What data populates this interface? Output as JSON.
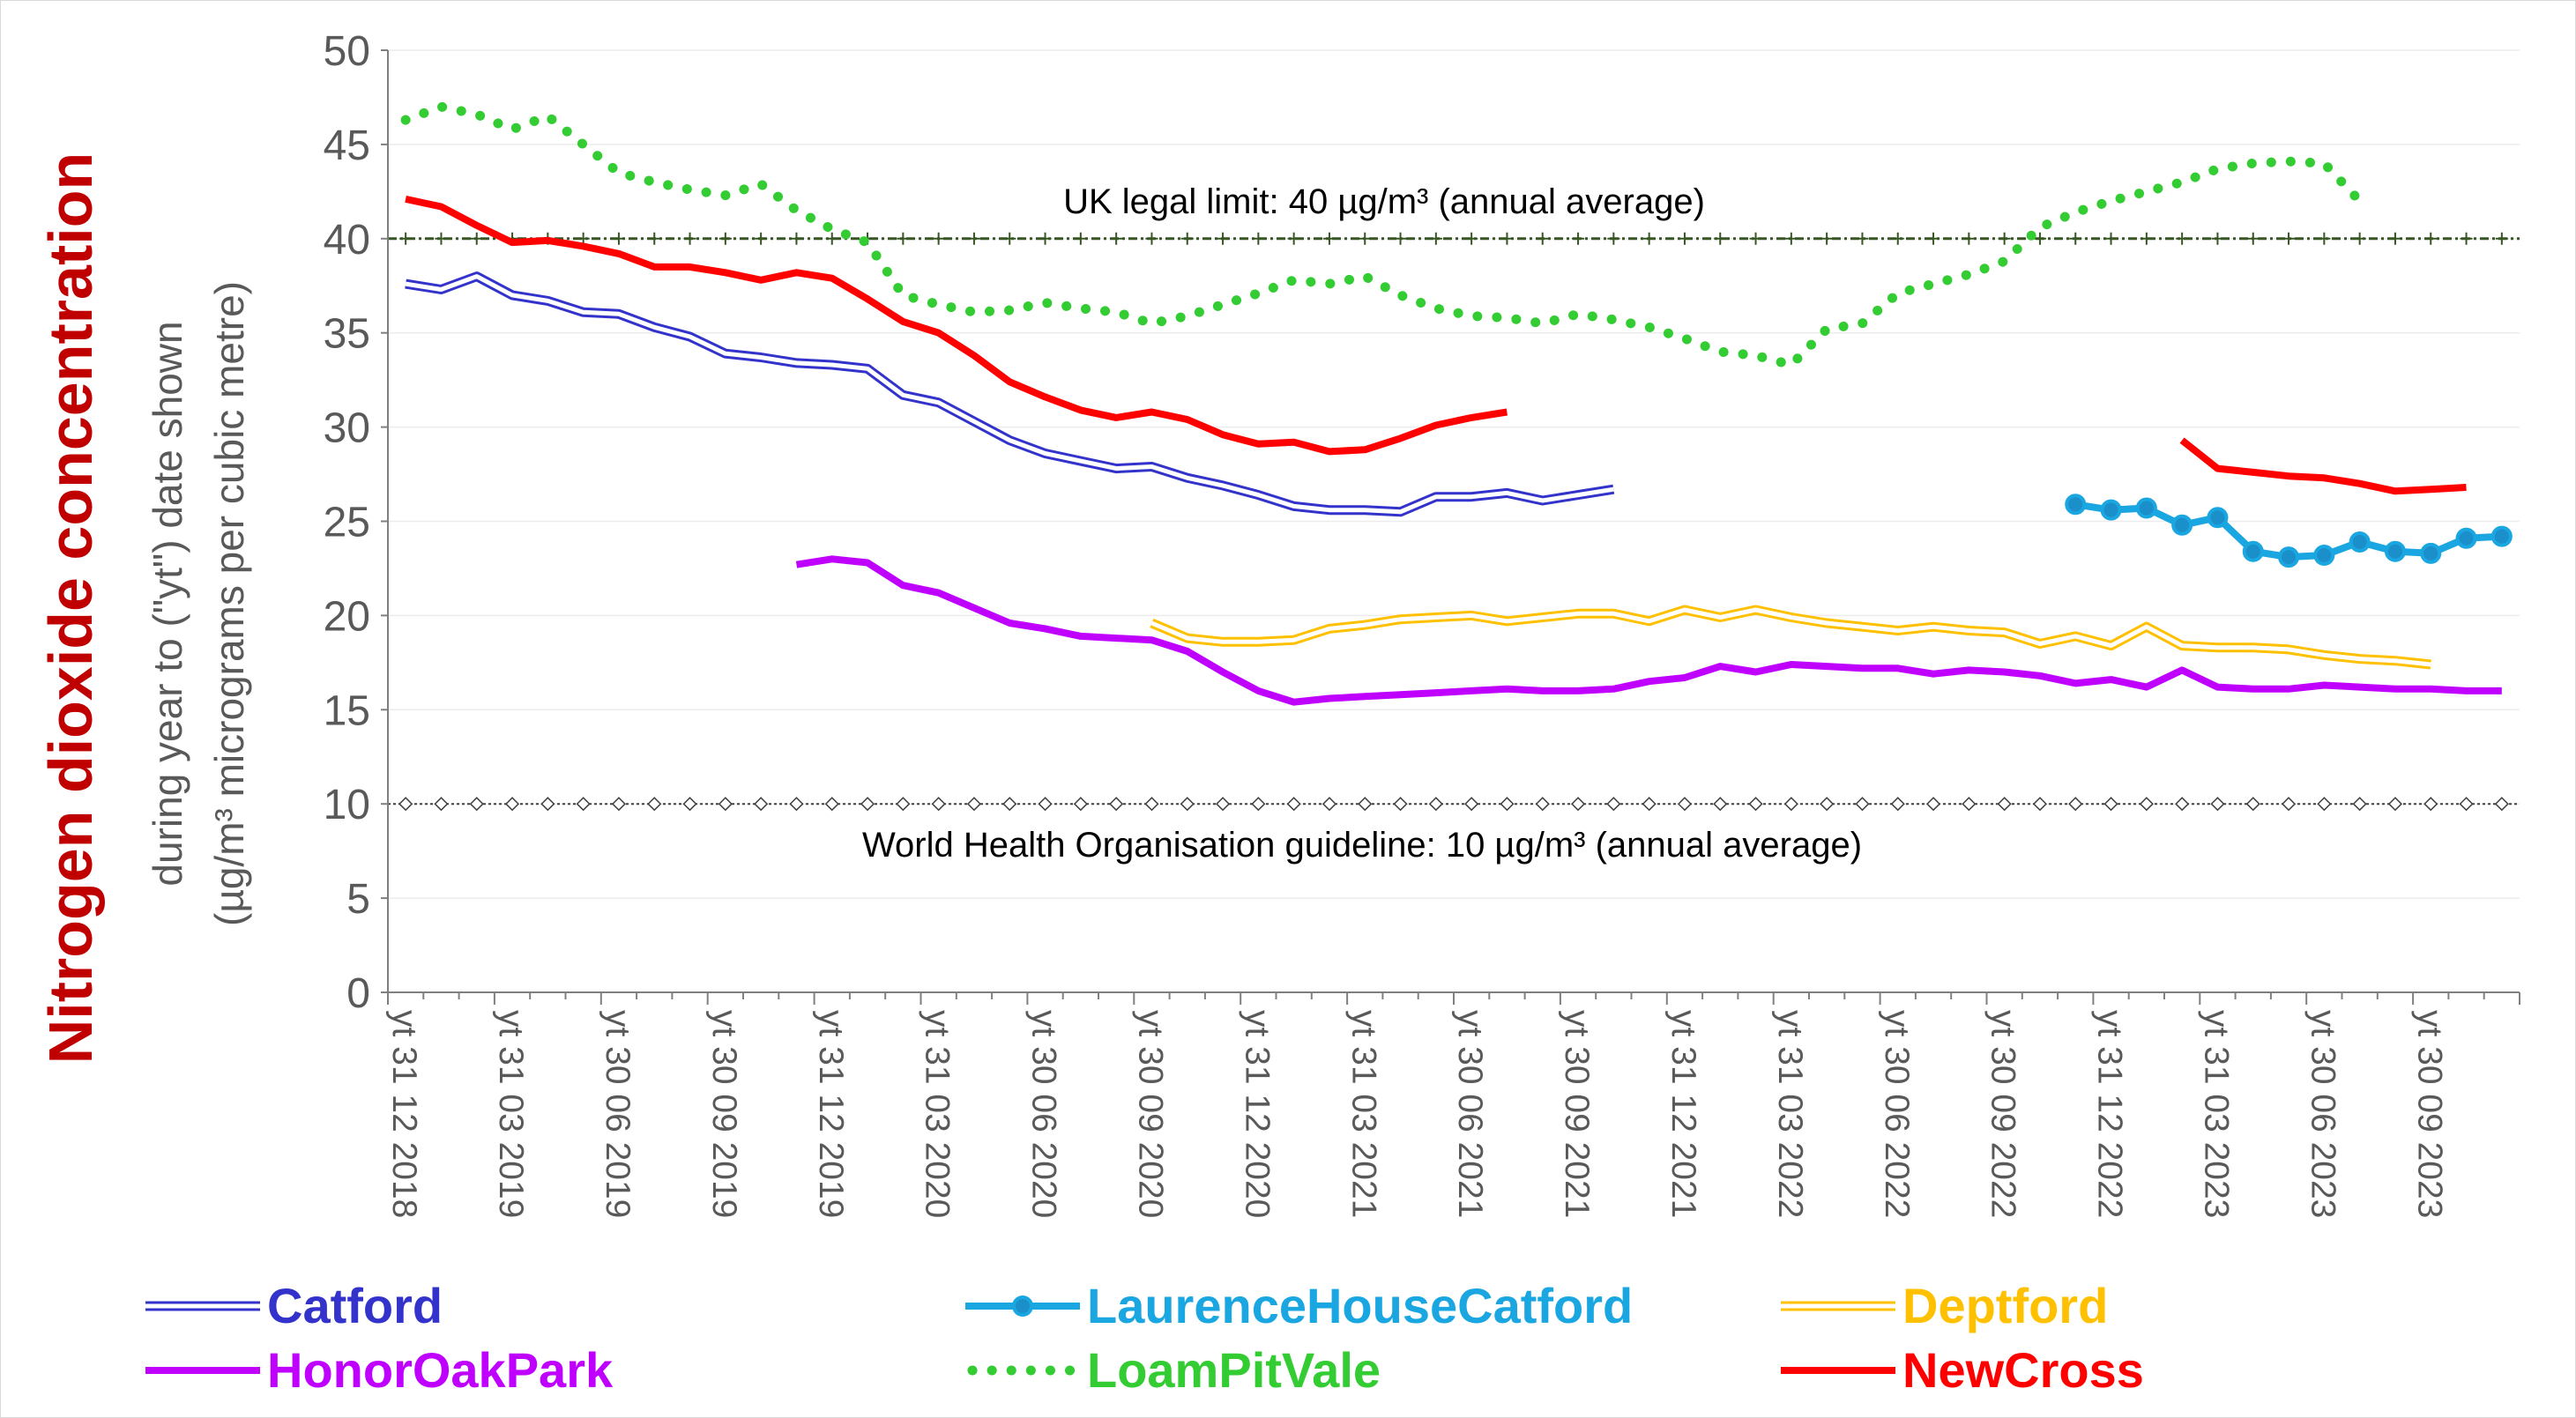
{
  "chart_data": {
    "type": "line",
    "ylabel_main": "Nitrogen dioxide concentration",
    "ylabel_sub1": "during year to (\"yt\") date shown",
    "ylabel_sub2": "(µg/m³ micrograms per cubic metre)",
    "ylim": [
      0,
      50
    ],
    "yticks": [
      0,
      5,
      10,
      15,
      20,
      25,
      30,
      35,
      40,
      45,
      50
    ],
    "grid": true,
    "legend_position": "bottom",
    "x_tick_labels": [
      "yt 31 12 2018",
      "yt 31 03 2019",
      "yt 30 06 2019",
      "yt 30 09 2019",
      "yt 31 12 2019",
      "yt 31 03 2020",
      "yt 30 06 2020",
      "yt 30 09 2020",
      "yt 31 12 2020",
      "yt 31 03 2021",
      "yt 30 06 2021",
      "yt 30 09 2021",
      "yt 31 12 2021",
      "yt 31 03 2022",
      "yt 30 06 2022",
      "yt 30 09 2022",
      "yt 31 12 2022",
      "yt 31 03 2023",
      "yt 30 06 2023",
      "yt 30 09 2023"
    ],
    "x_months": [
      "2018-12",
      "2019-01",
      "2019-02",
      "2019-03",
      "2019-04",
      "2019-05",
      "2019-06",
      "2019-07",
      "2019-08",
      "2019-09",
      "2019-10",
      "2019-11",
      "2019-12",
      "2020-01",
      "2020-02",
      "2020-03",
      "2020-04",
      "2020-05",
      "2020-06",
      "2020-07",
      "2020-08",
      "2020-09",
      "2020-10",
      "2020-11",
      "2020-12",
      "2021-01",
      "2021-02",
      "2021-03",
      "2021-04",
      "2021-05",
      "2021-06",
      "2021-07",
      "2021-08",
      "2021-09",
      "2021-10",
      "2021-11",
      "2021-12",
      "2022-01",
      "2022-02",
      "2022-03",
      "2022-04",
      "2022-05",
      "2022-06",
      "2022-07",
      "2022-08",
      "2022-09",
      "2022-10",
      "2022-11",
      "2022-12",
      "2023-01",
      "2023-02",
      "2023-03",
      "2023-04",
      "2023-05",
      "2023-06",
      "2023-07",
      "2023-08",
      "2023-09",
      "2023-10",
      "2023-11"
    ],
    "reference_lines": [
      {
        "y": 40,
        "label": "UK legal limit: 40 µg/m³ (annual average)",
        "color": "#375623"
      },
      {
        "y": 10,
        "label": "World Health Organisation guideline: 10 µg/m³ (annual average)",
        "color": "#404040"
      }
    ],
    "series": [
      {
        "name": "Catford",
        "color": "#3333cc",
        "style": "double",
        "values": [
          37.6,
          37.3,
          38.0,
          37.0,
          36.7,
          36.1,
          36.0,
          35.3,
          34.8,
          33.9,
          33.7,
          33.4,
          33.3,
          33.1,
          31.7,
          31.3,
          30.3,
          29.3,
          28.6,
          28.2,
          27.8,
          27.9,
          27.3,
          26.9,
          26.4,
          25.8,
          25.6,
          25.6,
          25.5,
          26.3,
          26.3,
          26.5,
          26.1,
          26.4,
          26.7,
          null,
          null,
          null,
          null,
          null,
          null,
          null,
          null,
          null,
          null,
          null,
          null,
          null,
          null,
          null,
          null,
          null,
          null,
          null,
          null,
          null,
          null,
          null,
          null,
          null
        ]
      },
      {
        "name": "LaurenceHouseCatford",
        "color": "#1aa6e0",
        "style": "markers",
        "values": [
          null,
          null,
          null,
          null,
          null,
          null,
          null,
          null,
          null,
          null,
          null,
          null,
          null,
          null,
          null,
          null,
          null,
          null,
          null,
          null,
          null,
          null,
          null,
          null,
          null,
          null,
          null,
          null,
          null,
          null,
          null,
          null,
          null,
          null,
          null,
          null,
          null,
          null,
          null,
          null,
          null,
          null,
          null,
          null,
          null,
          null,
          null,
          25.9,
          25.6,
          25.7,
          24.8,
          25.2,
          23.4,
          23.1,
          23.2,
          23.9,
          23.4,
          23.3,
          24.1,
          24.2
        ]
      },
      {
        "name": "Deptford",
        "color": "#ffc000",
        "style": "double",
        "values": [
          null,
          null,
          null,
          null,
          null,
          null,
          null,
          null,
          null,
          null,
          null,
          null,
          null,
          null,
          null,
          null,
          null,
          null,
          null,
          null,
          null,
          19.6,
          18.8,
          18.6,
          18.6,
          18.7,
          19.3,
          19.5,
          19.8,
          19.9,
          20.0,
          19.7,
          19.9,
          20.1,
          20.1,
          19.7,
          20.3,
          19.9,
          20.3,
          19.9,
          19.6,
          19.4,
          19.2,
          19.4,
          19.2,
          19.1,
          18.5,
          18.9,
          18.4,
          19.4,
          18.4,
          18.3,
          18.3,
          18.2,
          17.9,
          17.7,
          17.6,
          17.4,
          null,
          null
        ]
      },
      {
        "name": "HonorOakPark",
        "color": "#bf00ff",
        "style": "solid",
        "values": [
          null,
          null,
          null,
          null,
          null,
          null,
          null,
          null,
          null,
          null,
          null,
          22.7,
          23.0,
          22.8,
          21.6,
          21.2,
          20.4,
          19.6,
          19.3,
          18.9,
          18.8,
          18.7,
          18.1,
          17.0,
          16.0,
          15.4,
          15.6,
          15.7,
          15.8,
          15.9,
          16.0,
          16.1,
          16.0,
          16.0,
          16.1,
          16.5,
          16.7,
          17.3,
          17.0,
          17.4,
          17.3,
          17.2,
          17.2,
          16.9,
          17.1,
          17.0,
          16.8,
          16.4,
          16.6,
          16.2,
          17.1,
          16.2,
          16.1,
          16.1,
          16.3,
          16.2,
          16.1,
          16.1,
          16.0,
          16.0
        ]
      },
      {
        "name": "LoamPitVale",
        "color": "#33cc33",
        "style": "dotted",
        "values": [
          46.3,
          47.0,
          46.6,
          45.8,
          46.5,
          45.0,
          43.5,
          43.0,
          42.6,
          42.3,
          42.9,
          41.5,
          40.5,
          39.8,
          37.0,
          36.5,
          36.1,
          36.2,
          36.6,
          36.3,
          36.1,
          35.5,
          35.9,
          36.5,
          37.1,
          37.8,
          37.6,
          38.0,
          37.0,
          36.3,
          35.9,
          35.8,
          35.5,
          36.0,
          35.7,
          35.3,
          34.7,
          34.0,
          33.8,
          33.3,
          35.2,
          35.5,
          37.1,
          37.6,
          38.1,
          38.8,
          40.6,
          41.4,
          42.0,
          42.5,
          43.0,
          43.7,
          44.0,
          44.1,
          44.0,
          42.0,
          null,
          null,
          null,
          null
        ]
      },
      {
        "name": "NewCross",
        "color": "#ff0000",
        "style": "solid",
        "values": [
          42.1,
          41.7,
          40.7,
          39.8,
          39.9,
          39.6,
          39.2,
          38.5,
          38.5,
          38.2,
          37.8,
          38.2,
          37.9,
          36.8,
          35.6,
          35.0,
          33.8,
          32.4,
          31.6,
          30.9,
          30.5,
          30.8,
          30.4,
          29.6,
          29.1,
          29.2,
          28.7,
          28.8,
          29.4,
          30.1,
          30.5,
          30.8,
          null,
          null,
          null,
          null,
          null,
          null,
          null,
          null,
          null,
          null,
          null,
          null,
          null,
          null,
          null,
          null,
          null,
          null,
          29.3,
          27.8,
          27.6,
          27.4,
          27.3,
          27.0,
          26.6,
          26.7,
          26.8,
          null
        ]
      }
    ]
  }
}
